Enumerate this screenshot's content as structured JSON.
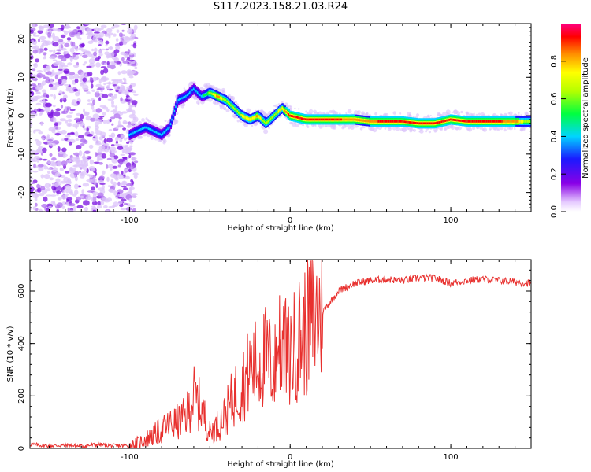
{
  "title": "S117.2023.158.21.03.R24",
  "colors": {
    "snr_line": "#e8302e",
    "axis": "#000000"
  },
  "chart_data": [
    {
      "type": "heatmap",
      "xlabel": "Height of straight line (km)",
      "ylabel": "Frequency (Hz)",
      "xlim": [
        -162,
        150
      ],
      "ylim": [
        -25,
        24
      ],
      "xticks": [
        -100,
        0,
        100
      ],
      "yticks": [
        -20,
        -10,
        0,
        10,
        20
      ],
      "colorbar": {
        "label": "Normalized spectral amplitude",
        "range": [
          0,
          1
        ],
        "ticks": [
          0.0,
          0.2,
          0.4,
          0.6,
          0.8
        ],
        "tick_labels": [
          "0.0",
          "0.2",
          "0.4",
          "0.6",
          "0.8"
        ],
        "colormap": "rainbow (white, violet, blue, cyan, green, yellow, orange, red, magenta)"
      },
      "ridge": {
        "x": [
          -100,
          -95,
          -90,
          -85,
          -80,
          -75,
          -70,
          -65,
          -60,
          -55,
          -50,
          -45,
          -40,
          -35,
          -30,
          -25,
          -20,
          -15,
          -10,
          -5,
          0,
          10,
          20,
          30,
          40,
          50,
          60,
          70,
          80,
          90,
          100,
          110,
          120,
          130,
          140,
          150
        ],
        "frequency": [
          -5,
          -4,
          -3,
          -4,
          -5,
          -3,
          4,
          5,
          7,
          5,
          6,
          5,
          4,
          2,
          0,
          -1,
          0,
          -2,
          0,
          2,
          0,
          -1,
          -1,
          -1,
          -1,
          -1.5,
          -1.5,
          -1.5,
          -2,
          -2,
          -1,
          -1.5,
          -1.5,
          -1.5,
          -1.5,
          -1.5
        ],
        "amplitude": [
          0.35,
          0.3,
          0.35,
          0.3,
          0.3,
          0.35,
          0.35,
          0.3,
          0.3,
          0.35,
          0.55,
          0.8,
          0.55,
          0.6,
          0.65,
          0.7,
          0.75,
          0.55,
          0.6,
          0.7,
          0.9,
          0.85,
          0.9,
          0.85,
          0.8,
          0.8,
          0.9,
          0.85,
          0.9,
          0.85,
          0.9,
          0.9,
          0.85,
          0.85,
          0.8,
          0.5
        ]
      },
      "noise_region": {
        "x_range": [
          -162,
          -100
        ],
        "frequency_range": [
          -25,
          24
        ],
        "amplitude": "low (0.0-0.2)"
      }
    },
    {
      "type": "line",
      "xlabel": "Height of straight line (km)",
      "ylabel": "SNR (10 * v/v)",
      "xlim": [
        -162,
        150
      ],
      "ylim": [
        0,
        720
      ],
      "xticks": [
        -100,
        0,
        100
      ],
      "yticks": [
        0,
        200,
        400,
        600
      ],
      "series": [
        {
          "x": [
            -162,
            -150,
            -140,
            -130,
            -120,
            -110,
            -100,
            -95,
            -90,
            -85,
            -80,
            -75,
            -70,
            -65,
            -60,
            -55,
            -50,
            -45,
            -40,
            -35,
            -30,
            -25,
            -20,
            -15,
            -10,
            -5,
            0,
            5,
            10,
            15,
            20,
            25,
            30,
            40,
            50,
            60,
            70,
            80,
            90,
            100,
            110,
            120,
            130,
            140,
            150
          ],
          "y": [
            15,
            10,
            12,
            8,
            15,
            10,
            10,
            20,
            35,
            50,
            70,
            90,
            100,
            120,
            200,
            150,
            60,
            90,
            130,
            200,
            240,
            300,
            320,
            350,
            300,
            380,
            350,
            420,
            450,
            500,
            520,
            560,
            600,
            630,
            640,
            645,
            640,
            650,
            650,
            630,
            640,
            645,
            640,
            635,
            630
          ]
        }
      ]
    }
  ]
}
